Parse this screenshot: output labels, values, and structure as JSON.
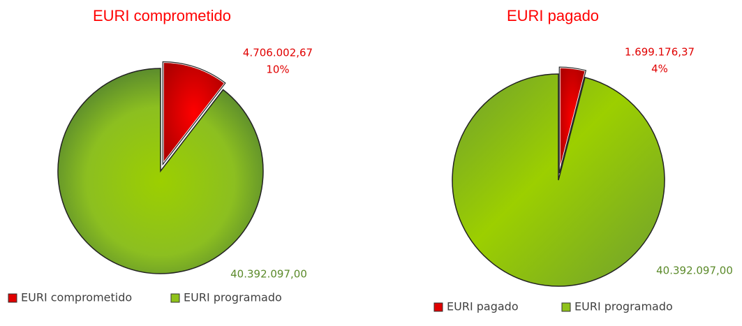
{
  "chart_data": [
    {
      "type": "pie",
      "title": "EURI comprometido",
      "categories": [
        "EURI comprometido",
        "EURI programado"
      ],
      "values": [
        4706002.67,
        40392097.0
      ],
      "value_labels": [
        "4.706.002,67",
        "40.392.097,00"
      ],
      "percents": [
        10,
        null
      ],
      "percent_labels": [
        "10%",
        null
      ],
      "colors": [
        "#e00000",
        "#8fc21a"
      ],
      "legend": "bottom"
    },
    {
      "type": "pie",
      "title": "EURI pagado",
      "categories": [
        "EURI pagado",
        "EURI programado"
      ],
      "values": [
        1699176.37,
        40392097.0
      ],
      "value_labels": [
        "1.699.176,37",
        "40.392.097,00"
      ],
      "percents": [
        4,
        null
      ],
      "percent_labels": [
        "4%",
        null
      ],
      "colors": [
        "#e00000",
        "#8fc21a"
      ],
      "legend": "bottom"
    }
  ]
}
